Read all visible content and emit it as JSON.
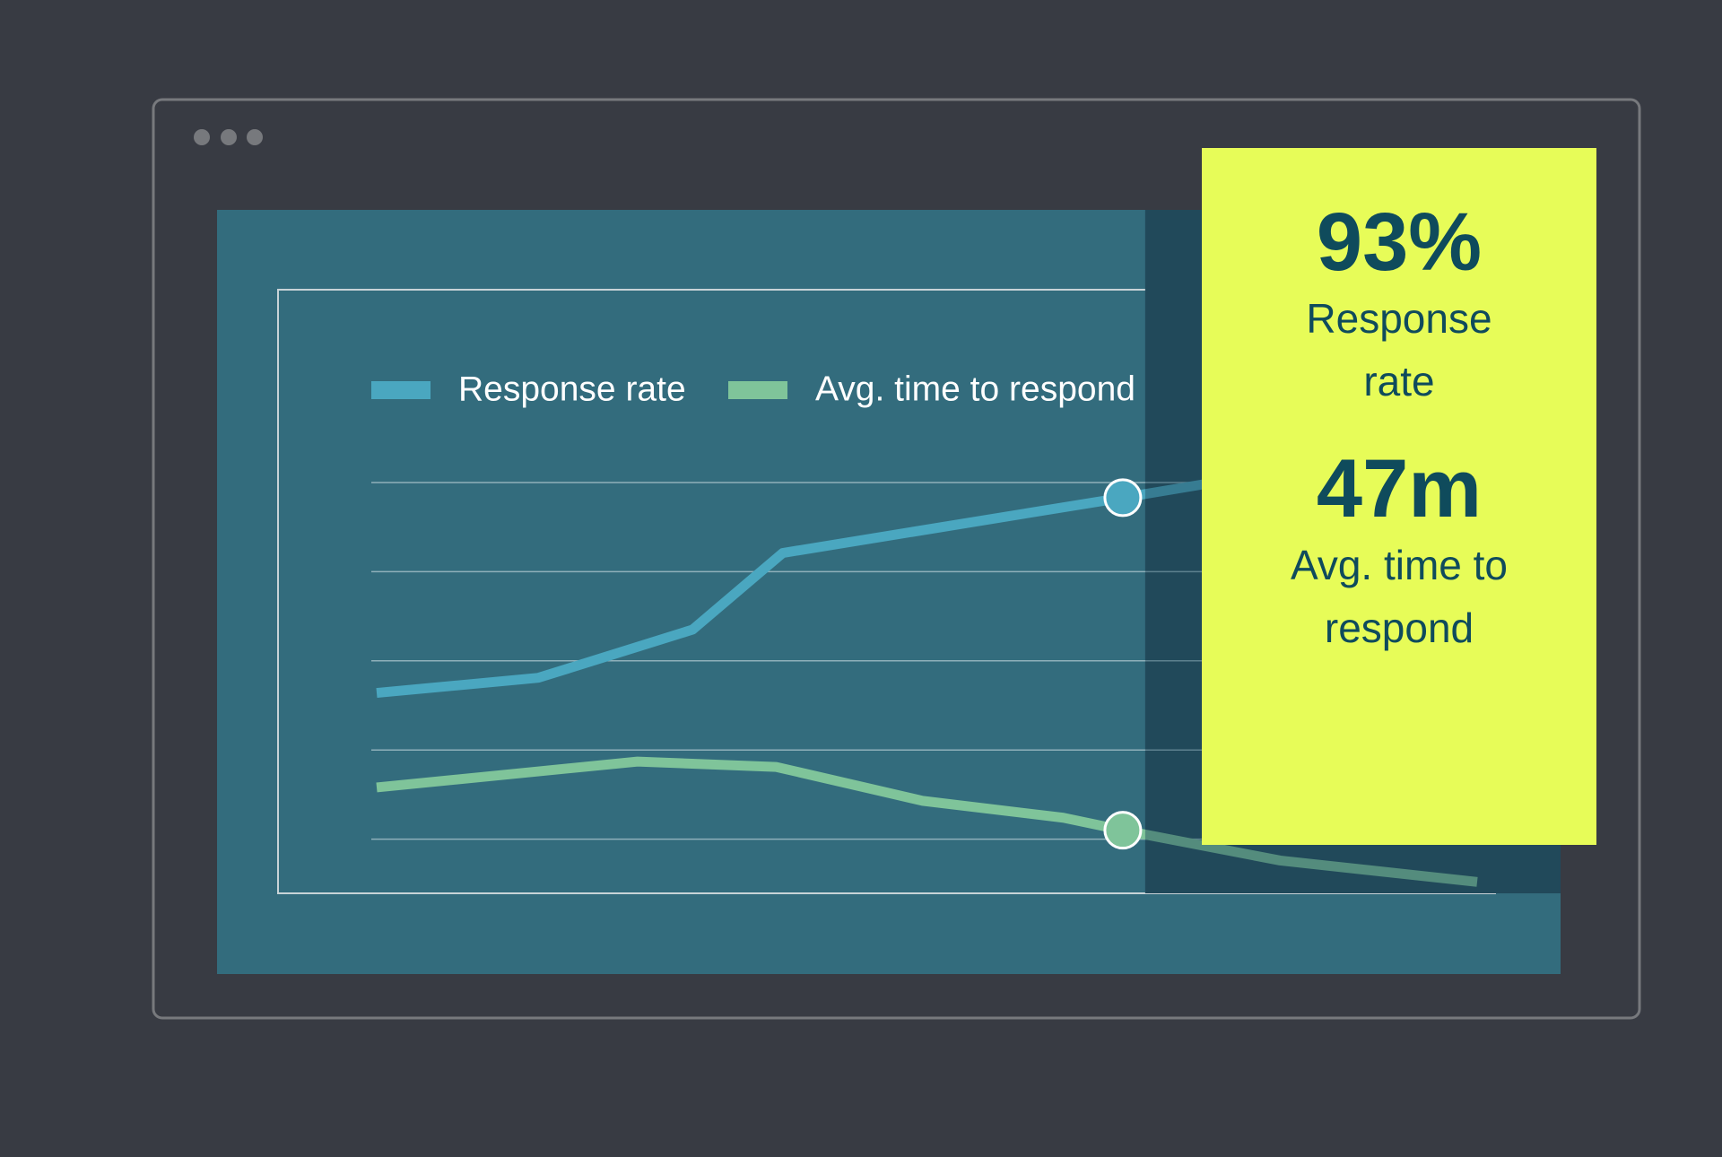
{
  "chart_data": {
    "type": "line",
    "series": [
      {
        "name": "Response rate",
        "color": "#4aa7c0",
        "x": [
          0,
          1.47,
          2.87,
          3.69,
          6.78,
          7.56
        ],
        "values": [
          2.64,
          2.81,
          3.35,
          4.21,
          4.83,
          4.99
        ]
      },
      {
        "name": "Avg. time to respond",
        "color": "#7fc49a",
        "x": [
          0,
          1.47,
          2.37,
          3.63,
          4.96,
          6.24,
          6.78,
          8.21,
          10
        ],
        "values": [
          1.58,
          1.76,
          1.87,
          1.81,
          1.43,
          1.24,
          1.1,
          0.76,
          0.52
        ]
      }
    ],
    "xlim": [
      0,
      10
    ],
    "ylim": [
      0,
      5
    ],
    "yticks": [
      1,
      2,
      3,
      4,
      5
    ],
    "grid": true,
    "cursor_x": 6.78
  },
  "stats": [
    {
      "value": "93%",
      "label": "Response rate"
    },
    {
      "value": "47m",
      "label": "Avg. time to respond"
    }
  ]
}
